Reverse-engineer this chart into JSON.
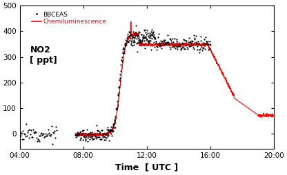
{
  "xlabel": "Time  [ UTC ]",
  "xlim_hours": [
    4,
    20
  ],
  "ylim": [
    -60,
    500
  ],
  "yticks": [
    0,
    100,
    200,
    300,
    400,
    500
  ],
  "xtick_labels": [
    "04:00",
    "08:00",
    "12:00",
    "16:00",
    "20:00"
  ],
  "xtick_hours": [
    4,
    8,
    12,
    16,
    20
  ],
  "legend_labels": [
    "BBCEAS",
    "Chemiluminescence"
  ],
  "legend_colors": [
    "black",
    "red"
  ],
  "bbceas_color": "black",
  "chemi_color": "red",
  "annotation": "NO2\n[ ppt]",
  "background_color": "white"
}
